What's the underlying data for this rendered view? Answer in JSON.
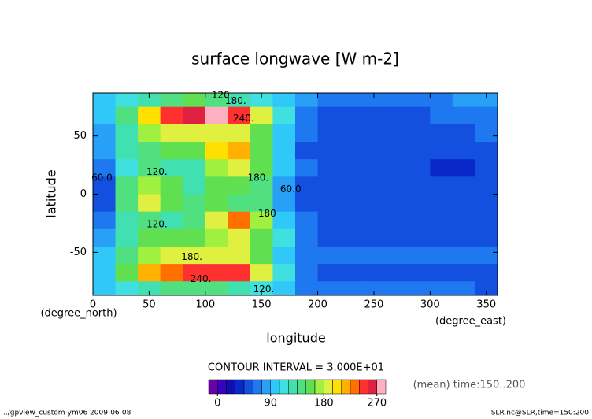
{
  "chart_data": {
    "type": "contour",
    "title": "surface longwave [W m-2]",
    "x_label": "longitude",
    "y_label": "latitude",
    "x_unit": "(degree_east)",
    "y_unit": "(degree_north)",
    "contour_note": "CONTOUR INTERVAL = 3.000E+01",
    "mean_note": "(mean) time:150..200",
    "footer_left": "../gpview_custom-ym06  2009-06-08",
    "footer_right": "SLR.nc@SLR,time=150:200",
    "xlim": [
      0,
      360
    ],
    "ylim": [
      -87,
      87
    ],
    "xticks": [
      0,
      50,
      100,
      150,
      200,
      250,
      300,
      350
    ],
    "yticks": [
      -50,
      0,
      50
    ],
    "x": [
      10,
      30,
      50,
      70,
      90,
      110,
      130,
      150,
      170,
      190,
      210,
      230,
      250,
      270,
      290,
      310,
      330,
      350
    ],
    "y": [
      82.5,
      67.5,
      52.5,
      37.5,
      22.5,
      7.5,
      -7.5,
      -22.5,
      -37.5,
      -52.5,
      -67.5,
      -82.5
    ],
    "z": [
      [
        100,
        110,
        130,
        140,
        150,
        145,
        130,
        110,
        90,
        75,
        70,
        70,
        68,
        68,
        72,
        72,
        75,
        80
      ],
      [
        95,
        140,
        200,
        245,
        255,
        270,
        250,
        190,
        110,
        65,
        58,
        58,
        58,
        58,
        58,
        62,
        70,
        72
      ],
      [
        85,
        130,
        170,
        185,
        190,
        190,
        185,
        150,
        100,
        60,
        55,
        55,
        55,
        55,
        55,
        55,
        58,
        60
      ],
      [
        75,
        120,
        140,
        150,
        160,
        200,
        215,
        160,
        100,
        58,
        55,
        55,
        55,
        55,
        52,
        50,
        50,
        55
      ],
      [
        60,
        110,
        135,
        120,
        125,
        170,
        180,
        150,
        95,
        60,
        55,
        55,
        55,
        55,
        50,
        42,
        42,
        48
      ],
      [
        50,
        140,
        175,
        150,
        130,
        150,
        150,
        140,
        80,
        55,
        50,
        55,
        55,
        55,
        55,
        55,
        55,
        55
      ],
      [
        55,
        145,
        185,
        160,
        135,
        160,
        145,
        140,
        80,
        52,
        48,
        55,
        55,
        55,
        55,
        55,
        55,
        55
      ],
      [
        70,
        120,
        140,
        125,
        145,
        190,
        225,
        170,
        95,
        60,
        55,
        55,
        55,
        55,
        55,
        55,
        55,
        55
      ],
      [
        80,
        130,
        150,
        150,
        160,
        175,
        185,
        155,
        110,
        65,
        58,
        58,
        58,
        58,
        58,
        58,
        58,
        58
      ],
      [
        90,
        140,
        170,
        185,
        190,
        190,
        180,
        150,
        100,
        68,
        60,
        60,
        60,
        60,
        60,
        60,
        60,
        60
      ],
      [
        95,
        150,
        210,
        235,
        250,
        250,
        240,
        190,
        110,
        65,
        58,
        58,
        58,
        58,
        58,
        58,
        58,
        58
      ],
      [
        90,
        110,
        130,
        140,
        145,
        140,
        125,
        110,
        90,
        72,
        65,
        62,
        62,
        62,
        62,
        60,
        60,
        50
      ]
    ],
    "levels": [
      -15,
      0,
      15,
      30,
      45,
      60,
      75,
      90,
      105,
      120,
      135,
      150,
      165,
      180,
      195,
      210,
      225,
      240,
      255,
      270,
      285
    ],
    "colors": [
      "#6a00a8",
      "#3a00c0",
      "#1010b0",
      "#0a28c8",
      "#1450e0",
      "#1e78f0",
      "#28a0f8",
      "#30c8f8",
      "#40e0e0",
      "#40e0b0",
      "#50e080",
      "#60e050",
      "#a0f040",
      "#e0f040",
      "#ffe000",
      "#ffb000",
      "#ff7000",
      "#ff3030",
      "#e02040",
      "#ffb0c0"
    ],
    "colorbar_ticks": [
      0,
      90,
      180,
      270
    ],
    "contour_labels": [
      {
        "label": "120.",
        "x": 115,
        "y": 85
      },
      {
        "label": "180.",
        "x": 127,
        "y": 80
      },
      {
        "label": "240.",
        "x": 134,
        "y": 65
      },
      {
        "label": "120.",
        "x": 57,
        "y": 19
      },
      {
        "label": "180.",
        "x": 147,
        "y": 14
      },
      {
        "label": "60.0",
        "x": 8,
        "y": 14
      },
      {
        "label": "60.0",
        "x": 176,
        "y": 4
      },
      {
        "label": "180",
        "x": 155,
        "y": -17
      },
      {
        "label": "120.",
        "x": 57,
        "y": -26
      },
      {
        "label": "180.",
        "x": 88,
        "y": -54
      },
      {
        "label": "240.",
        "x": 96,
        "y": -73
      },
      {
        "label": "120.",
        "x": 152,
        "y": -82
      }
    ]
  }
}
